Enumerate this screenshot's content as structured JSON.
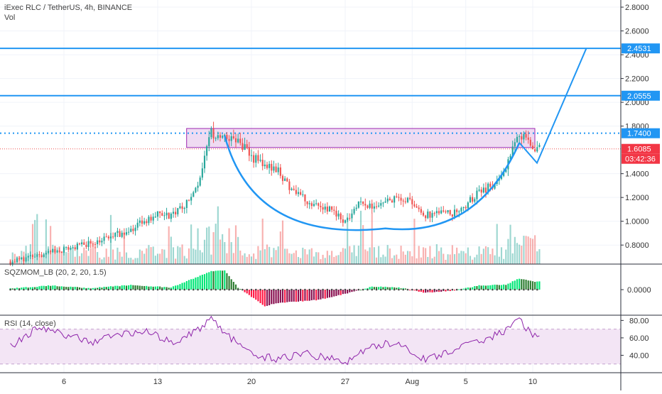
{
  "header": {
    "symbol_title": "iExec RLC / TetherUS, 4h, BINANCE",
    "volume_label": "Vol"
  },
  "colors": {
    "up": "#26a69a",
    "down": "#ef5350",
    "accent_blue": "#2196f3",
    "resistance_box_fill": "#e1bee7",
    "resistance_box_stroke": "#9c27b0",
    "rsi_band": "#f3e5f5",
    "rsi_line": "#8e24aa",
    "price_line": "#ef5350",
    "label_red": "#f23645",
    "sqz_up_strong": "#00e676",
    "sqz_up_weak": "#2e7d32",
    "sqz_down_strong": "#ff1744",
    "sqz_down_weak": "#880e4f"
  },
  "chart_data": {
    "type": "candlestick",
    "title": "iExec RLC / TetherUS, 4h, BINANCE",
    "x_ticks": [
      "6",
      "13",
      "20",
      "27",
      "Aug",
      "5",
      "10"
    ],
    "price_axis": {
      "ticks": [
        "2.8000",
        "2.6000",
        "2.4000",
        "2.2000",
        "2.0000",
        "1.8000",
        "1.4000",
        "1.2000",
        "1.0000",
        "0.8000"
      ],
      "range": [
        0.64,
        2.86
      ]
    },
    "horizontal_levels": [
      {
        "label": "2.4531",
        "value": 2.4531,
        "style": "solid"
      },
      {
        "label": "2.0555",
        "value": 2.0555,
        "style": "solid"
      },
      {
        "label": "1.7400",
        "value": 1.74,
        "style": "dotted"
      }
    ],
    "last_price": {
      "label": "1.6085",
      "value": 1.6085,
      "countdown": "03:42:36"
    },
    "resistance_zone": {
      "from": 1.62,
      "to": 1.78
    },
    "cup_pattern": {
      "start": {
        "x": "Jul 18",
        "y": 1.72
      },
      "bottom": {
        "x": "Jul 30",
        "y": 0.94
      },
      "end": {
        "x": "Aug 9",
        "y": 1.66
      },
      "handle_low": {
        "x": "Aug 10",
        "y": 1.49
      },
      "target": {
        "x": "Aug 14",
        "y": 2.4531
      }
    },
    "price_anchors": [
      {
        "x": "Jul 2",
        "y": 0.66
      },
      {
        "x": "Jul 5",
        "y": 0.74
      },
      {
        "x": "Jul 7",
        "y": 0.79
      },
      {
        "x": "Jul 9",
        "y": 0.85
      },
      {
        "x": "Jul 11",
        "y": 0.93
      },
      {
        "x": "Jul 12",
        "y": 1.0
      },
      {
        "x": "Jul 13",
        "y": 1.06
      },
      {
        "x": "Jul 14",
        "y": 1.05
      },
      {
        "x": "Jul 15",
        "y": 1.12
      },
      {
        "x": "Jul 16",
        "y": 1.3
      },
      {
        "x": "Jul 17",
        "y": 1.74
      },
      {
        "x": "Jul 18",
        "y": 1.72
      },
      {
        "x": "Jul 19",
        "y": 1.67
      },
      {
        "x": "Jul 20",
        "y": 1.54
      },
      {
        "x": "Jul 22",
        "y": 1.42
      },
      {
        "x": "Jul 23",
        "y": 1.26
      },
      {
        "x": "Jul 24",
        "y": 1.18
      },
      {
        "x": "Jul 25",
        "y": 1.14
      },
      {
        "x": "Jul 26",
        "y": 1.1
      },
      {
        "x": "Jul 27",
        "y": 1.0
      },
      {
        "x": "Jul 28",
        "y": 1.15
      },
      {
        "x": "Jul 29",
        "y": 1.12
      },
      {
        "x": "Jul 30",
        "y": 1.17
      },
      {
        "x": "Jul 31",
        "y": 1.2
      },
      {
        "x": "Aug 1",
        "y": 1.17
      },
      {
        "x": "Aug 2",
        "y": 1.05
      },
      {
        "x": "Aug 3",
        "y": 1.08
      },
      {
        "x": "Aug 4",
        "y": 1.06
      },
      {
        "x": "Aug 5",
        "y": 1.14
      },
      {
        "x": "Aug 6",
        "y": 1.24
      },
      {
        "x": "Aug 7",
        "y": 1.3
      },
      {
        "x": "Aug 8",
        "y": 1.45
      },
      {
        "x": "Aug 9",
        "y": 1.74
      },
      {
        "x": "Aug 10",
        "y": 1.61
      }
    ],
    "squeeze_momentum": {
      "label": "SQZMOM_LB (20, 2, 20, 1.5)",
      "ticks": [
        "0.0000"
      ],
      "range": [
        -0.25,
        0.25
      ],
      "anchors": [
        {
          "x": "Jul 2",
          "y": 0.01
        },
        {
          "x": "Jul 5",
          "y": 0.04
        },
        {
          "x": "Jul 8",
          "y": 0.015
        },
        {
          "x": "Jul 11",
          "y": 0.045
        },
        {
          "x": "Jul 14",
          "y": 0.02
        },
        {
          "x": "Jul 17",
          "y": 0.18
        },
        {
          "x": "Jul 18",
          "y": 0.19
        },
        {
          "x": "Jul 19",
          "y": 0.02
        },
        {
          "x": "Jul 21",
          "y": -0.16
        },
        {
          "x": "Jul 22",
          "y": -0.13
        },
        {
          "x": "Jul 25",
          "y": -0.1
        },
        {
          "x": "Jul 27",
          "y": -0.04
        },
        {
          "x": "Jul 29",
          "y": 0.03
        },
        {
          "x": "Jul 31",
          "y": 0.02
        },
        {
          "x": "Aug 2",
          "y": -0.03
        },
        {
          "x": "Aug 4",
          "y": -0.01
        },
        {
          "x": "Aug 6",
          "y": 0.04
        },
        {
          "x": "Aug 8",
          "y": 0.05
        },
        {
          "x": "Aug 9",
          "y": 0.11
        },
        {
          "x": "Aug 10",
          "y": 0.08
        }
      ]
    },
    "rsi": {
      "label": "RSI (14, close)",
      "ticks": [
        "80.00",
        "60.00",
        "40.00"
      ],
      "range": [
        20,
        86
      ],
      "band": [
        30,
        70
      ],
      "anchors": [
        {
          "x": "Jul 2",
          "y": 50
        },
        {
          "x": "Jul 4",
          "y": 72
        },
        {
          "x": "Jul 6",
          "y": 64
        },
        {
          "x": "Jul 8",
          "y": 55
        },
        {
          "x": "Jul 10",
          "y": 64
        },
        {
          "x": "Jul 12",
          "y": 68
        },
        {
          "x": "Jul 14",
          "y": 55
        },
        {
          "x": "Jul 16",
          "y": 68
        },
        {
          "x": "Jul 17",
          "y": 84
        },
        {
          "x": "Jul 18",
          "y": 66
        },
        {
          "x": "Jul 20",
          "y": 40
        },
        {
          "x": "Jul 22",
          "y": 36
        },
        {
          "x": "Jul 24",
          "y": 42
        },
        {
          "x": "Jul 27",
          "y": 32
        },
        {
          "x": "Jul 29",
          "y": 50
        },
        {
          "x": "Jul 31",
          "y": 55
        },
        {
          "x": "Aug 2",
          "y": 34
        },
        {
          "x": "Aug 4",
          "y": 46
        },
        {
          "x": "Aug 6",
          "y": 56
        },
        {
          "x": "Aug 8",
          "y": 68
        },
        {
          "x": "Aug 9",
          "y": 82
        },
        {
          "x": "Aug 10",
          "y": 62
        }
      ]
    }
  }
}
